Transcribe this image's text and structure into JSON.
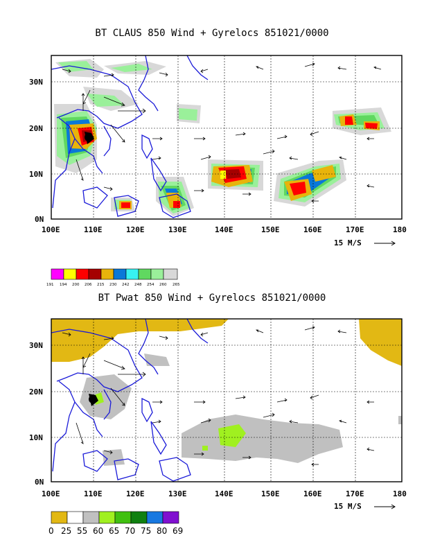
{
  "panels": [
    {
      "id": "claus",
      "title": "BT CLAUS 850 Wind + Gyrelocs 851021/0000",
      "lat_labels": [
        "30N",
        "20N",
        "10N",
        "0N"
      ],
      "lon_labels": [
        "100E",
        "110E",
        "120E",
        "130E",
        "140E",
        "150E",
        "160E",
        "170E",
        "180"
      ],
      "scale_label": "15 M/S",
      "legend": {
        "values": [
          "191",
          "194",
          "200",
          "206",
          "215",
          "230",
          "242",
          "248",
          "254",
          "260",
          "265"
        ],
        "colors": [
          "#ff00ff",
          "#ffff00",
          "#ff0000",
          "#a50000",
          "#e8b40b",
          "#0a78d8",
          "#37f2f2",
          "#60d860",
          "#9af09a",
          "#d8d8d8"
        ]
      }
    },
    {
      "id": "pwat",
      "title": "BT Pwat 850 Wind + Gyrelocs 851021/0000",
      "lat_labels": [
        "30N",
        "20N",
        "10N",
        "0N"
      ],
      "lon_labels": [
        "100E",
        "110E",
        "120E",
        "130E",
        "140E",
        "150E",
        "160E",
        "170E",
        "180"
      ],
      "scale_label": "15 M/S",
      "legend": {
        "values": [
          "0",
          "25",
          "55",
          "60",
          "65",
          "70",
          "75",
          "80",
          "69"
        ],
        "colors": [
          "#e2b814",
          "#ffffff",
          "#c0c0c0",
          "#a0f020",
          "#40c010",
          "#108010",
          "#1878e0",
          "#8010d0"
        ]
      }
    }
  ]
}
